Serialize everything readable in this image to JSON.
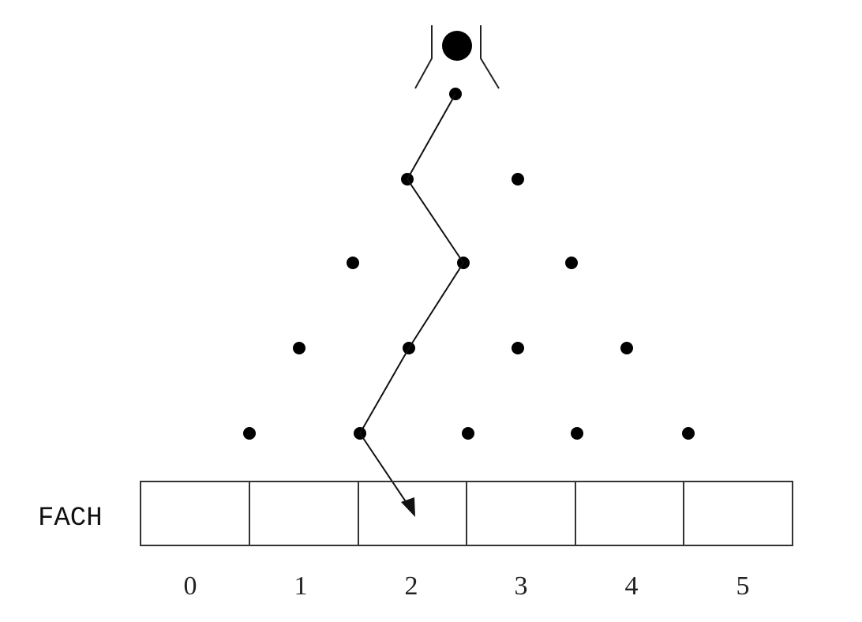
{
  "diagram": {
    "bins_label": "FACH",
    "bin_numbers": [
      "0",
      "1",
      "2",
      "3",
      "4",
      "5"
    ],
    "peg_rows": 5,
    "ball_path": [
      "left",
      "right",
      "left",
      "left",
      "right"
    ],
    "final_bin": "2",
    "colors": {
      "ink": "#111111",
      "box_stroke": "#333333",
      "background": "#ffffff"
    }
  }
}
